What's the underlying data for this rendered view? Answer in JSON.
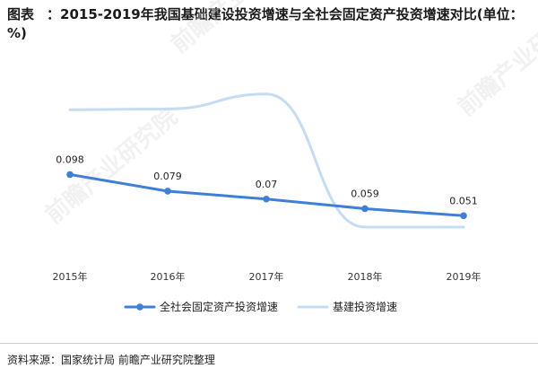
{
  "header": {
    "label": "图表",
    "title": "：2015-2019年我国基础建设投资增速与全社会固定资产投资增速对比(单位：%)"
  },
  "chart_data": {
    "type": "line",
    "title": "2015-2019年我国基础建设投资增速与全社会固定资产投资增速对比(单位：%)",
    "categories": [
      "2015年",
      "2016年",
      "2017年",
      "2018年",
      "2019年"
    ],
    "ylim": [
      0.0,
      0.2
    ],
    "grid": false,
    "legend_position": "bottom",
    "series": [
      {
        "name": "全社会固定资产投资增速",
        "values": [
          0.098,
          0.079,
          0.07,
          0.059,
          0.051
        ],
        "labels": [
          "0.098",
          "0.079",
          "0.07",
          "0.059",
          "0.051"
        ],
        "color": "#3f7fd9",
        "smooth": false,
        "markers": true
      },
      {
        "name": "基建投资增速",
        "values": [
          0.172,
          0.173,
          0.19,
          0.038,
          0.038
        ],
        "color": "#c6dcf3",
        "smooth": true,
        "markers": false
      }
    ]
  },
  "footer": {
    "source": "资料来源：国家统计局 前瞻产业研究院整理"
  },
  "watermark": {
    "text": "前瞻产业研究院"
  }
}
